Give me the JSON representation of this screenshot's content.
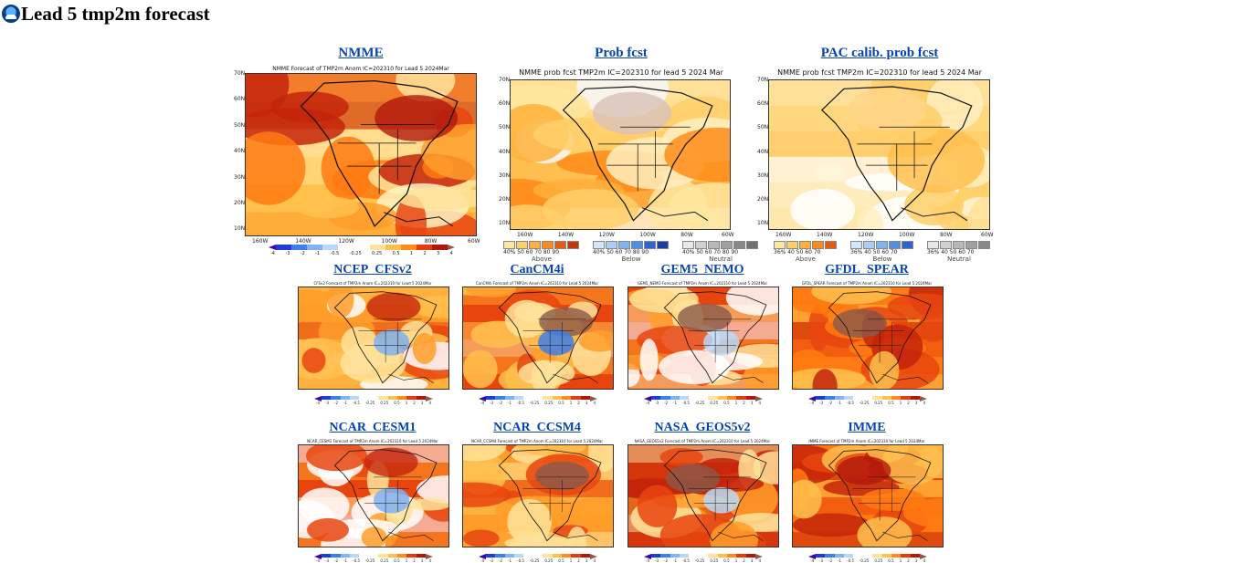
{
  "header": {
    "title": "Lead 5 tmp2m forecast",
    "logo_icon": "noaa-logo-icon"
  },
  "top_row": [
    {
      "link": "NMME",
      "caption": "NMME Forecast of TMP2m Anom IC=202310 for Lead 5 2024Mar",
      "type": "anom"
    },
    {
      "link": "Prob fcst",
      "caption": "NMME prob fcst TMP2m IC=202310 for lead 5 2024 Mar",
      "type": "prob"
    },
    {
      "link": "PAC calib. prob fcst",
      "caption": "NMME prob fcst TMP2m IC=202310 for lead 5 2024 Mar",
      "type": "prob"
    }
  ],
  "models": [
    {
      "link": "NCEP_CFSv2",
      "caption": "CFSv2 Forecast of TMP2m Anom IC=202310 for Lead 5 2024Mar"
    },
    {
      "link": "CanCM4i",
      "caption": "CanCM4i Forecast of TMP2m Anom IC=202310 for Lead 5 2024Mar"
    },
    {
      "link": "GEM5_NEMO",
      "caption": "GEM5_NEMO Forecast of TMP2m Anom IC=202310 for Lead 5 2024Mar"
    },
    {
      "link": "GFDL_SPEAR",
      "caption": "GFDL_SPEAR Forecast of TMP2m Anom IC=202310 for Lead 5 2024Mar"
    },
    {
      "link": "NCAR_CESM1",
      "caption": "NCAR_CESM1 Forecast of TMP2m Anom IC=202310 for Lead 5 2024Mar"
    },
    {
      "link": "NCAR_CCSM4",
      "caption": "NCAR_CCSM4 Forecast of TMP2m Anom IC=202310 for Lead 5 2024Mar"
    },
    {
      "link": "NASA_GEOS5v2",
      "caption": "NASA_GEOS5v2 Forecast of TMP2m Anom IC=202310 for Lead 5 2024Mar"
    },
    {
      "link": "IMME",
      "caption": "IMME Forecast of TMP2m Anom IC=202310 for Lead 5 2024Mar"
    }
  ],
  "lat_labels": [
    "70N",
    "60N",
    "50N",
    "40N",
    "30N",
    "20N",
    "10N"
  ],
  "lon_labels": [
    "160W",
    "140W",
    "120W",
    "100W",
    "80W",
    "60W"
  ],
  "anom_ticks": [
    "-4",
    "-3",
    "-2",
    "-1",
    "-0.5",
    "-0.25",
    "0.25",
    "0.5",
    "1",
    "2",
    "3",
    "4"
  ],
  "prob_legend": [
    {
      "name": "Above",
      "nums": "40% 50 60 70 80 90"
    },
    {
      "name": "Below",
      "nums": "40% 50 60 70 80 90"
    },
    {
      "name": "Neutral",
      "nums": "40% 50 60 70 80 90"
    }
  ],
  "pac_legend": [
    {
      "name": "Above",
      "nums": "36% 40 50 60 70"
    },
    {
      "name": "Below",
      "nums": "36% 40 50 60 70"
    },
    {
      "name": "Neutral",
      "nums": "36% 40 50 60 70"
    }
  ],
  "colors": {
    "anom_scale": [
      "#3a0aa8",
      "#1f3cd6",
      "#3f7fe8",
      "#7fb3f2",
      "#b9d8f7",
      "#ffffff",
      "#ffffff",
      "#ffe39a",
      "#ffc04d",
      "#ff8c1a",
      "#e63b0f",
      "#b0180c",
      "#8a5a4a"
    ],
    "above": [
      "#ffe6a0",
      "#ffcf6a",
      "#ffb13b",
      "#ff8c1a",
      "#e65c0d",
      "#c23a0a"
    ],
    "below": [
      "#d4e6fb",
      "#a9cdf6",
      "#7fb3f2",
      "#4f8fe6",
      "#2c64d2",
      "#1a3fa8"
    ],
    "neutral": [
      "#e8e8e8",
      "#d0d0d0",
      "#b8b8b8",
      "#a0a0a0",
      "#888888",
      "#707070"
    ],
    "link": "#0645ad"
  }
}
